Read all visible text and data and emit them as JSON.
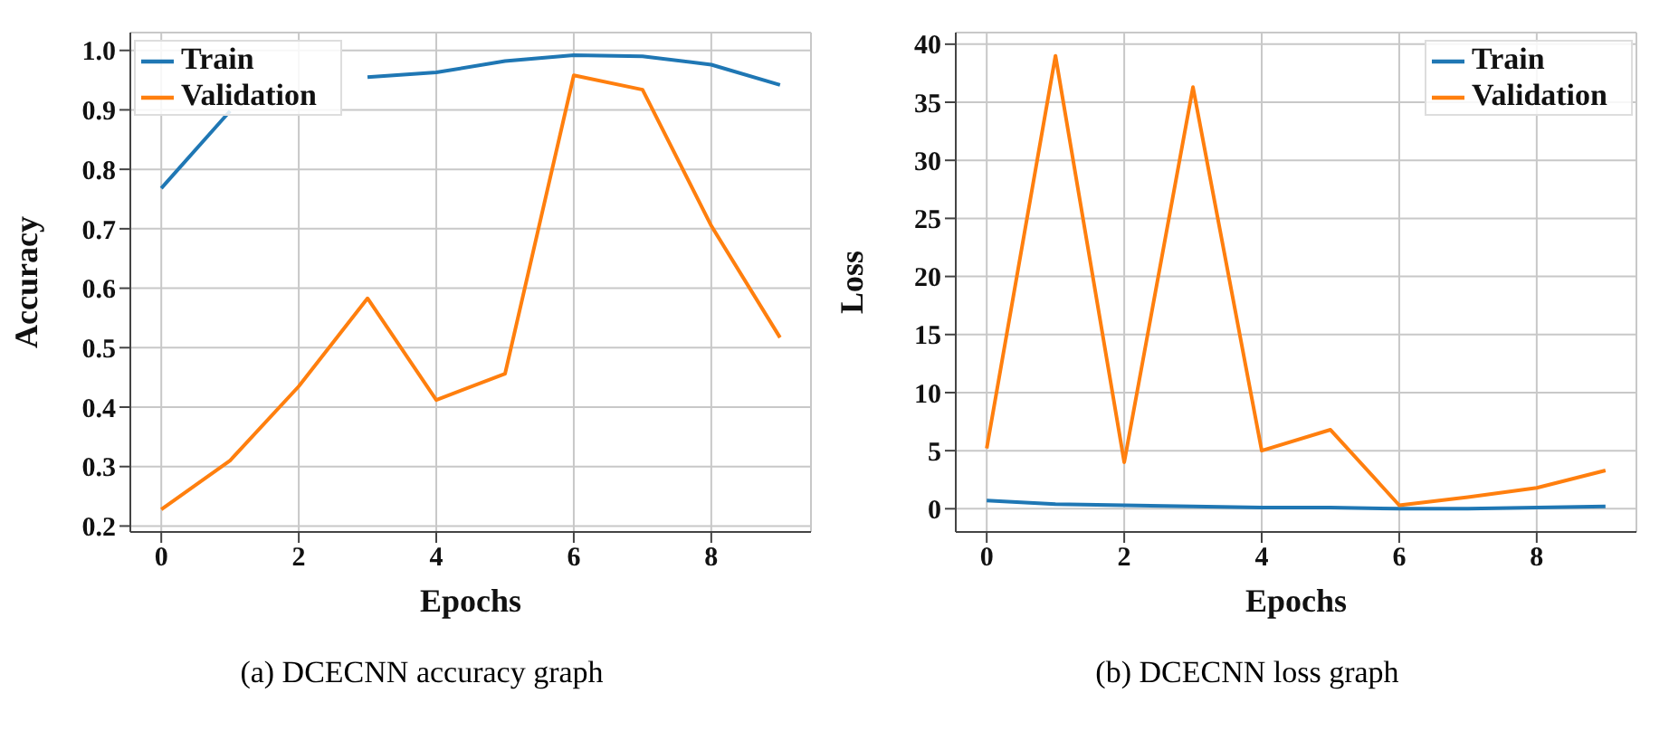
{
  "chart_data": [
    {
      "type": "line",
      "xlabel": "Epochs",
      "ylabel": "Accuracy",
      "x": [
        0,
        1,
        2,
        3,
        4,
        5,
        6,
        7,
        8,
        9
      ],
      "series": [
        {
          "name": "Train",
          "color": "#1f77b4",
          "values": [
            0.768,
            0.898,
            null,
            0.955,
            0.963,
            0.982,
            0.992,
            0.99,
            0.976,
            0.942
          ]
        },
        {
          "name": "Validation",
          "color": "#ff7f0e",
          "values": [
            0.228,
            0.31,
            0.435,
            0.583,
            0.412,
            0.456,
            0.958,
            0.934,
            0.705,
            0.517
          ]
        }
      ],
      "xlim": [
        -0.45,
        9.45
      ],
      "xticks": [
        0,
        2,
        4,
        6,
        8
      ],
      "ylim": [
        0.19,
        1.03
      ],
      "yticks": [
        0.2,
        0.3,
        0.4,
        0.5,
        0.6,
        0.7,
        0.8,
        0.9,
        {
          "value": 1,
          "label": "1.0"
        }
      ],
      "grid": true,
      "legend": "top left",
      "annotations": [
        "(a) DCECNN accuracy graph"
      ]
    },
    {
      "type": "line",
      "xlabel": "Epochs",
      "ylabel": "Loss",
      "x": [
        0,
        1,
        2,
        3,
        4,
        5,
        6,
        7,
        8,
        9
      ],
      "series": [
        {
          "name": "Train",
          "color": "#1f77b4",
          "values": [
            0.7,
            0.4,
            0.3,
            0.2,
            0.1,
            0.1,
            0,
            0,
            0.1,
            0.2
          ]
        },
        {
          "name": "Validation",
          "color": "#ff7f0e",
          "values": [
            5.2,
            39,
            4,
            36.3,
            5,
            6.8,
            0.3,
            1,
            1.8,
            3.3
          ]
        }
      ],
      "xlim": [
        -0.45,
        9.45
      ],
      "xticks": [
        0,
        2,
        4,
        6,
        8
      ],
      "ylim": [
        -2,
        41
      ],
      "yticks": [
        0,
        5,
        10,
        15,
        20,
        25,
        30,
        35,
        40
      ],
      "grid": true,
      "legend": "top right",
      "annotations": [
        "(b) DCECNN loss graph"
      ]
    }
  ]
}
